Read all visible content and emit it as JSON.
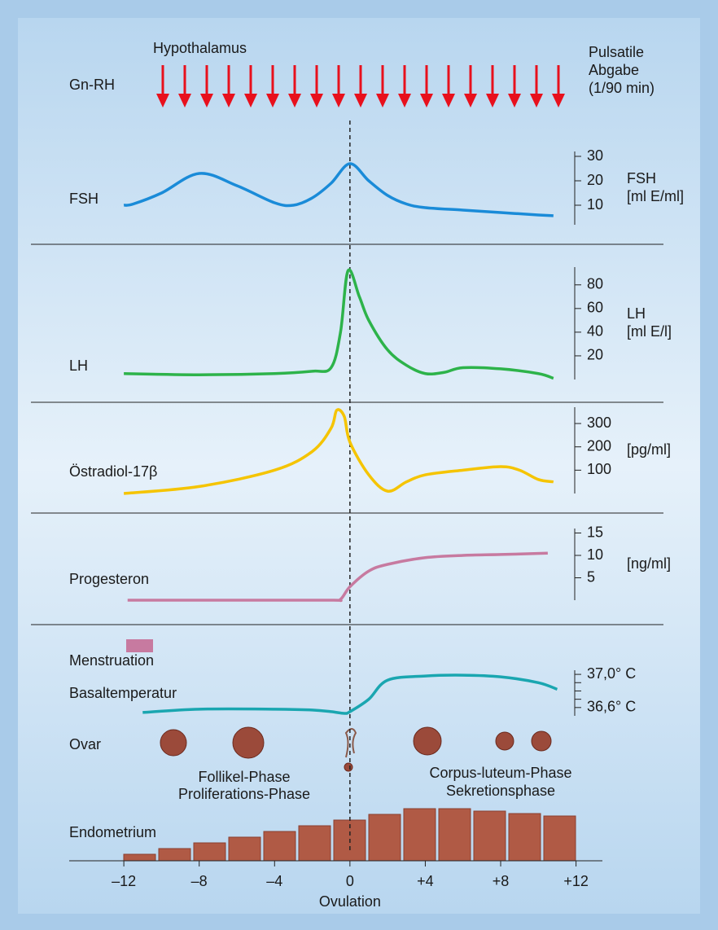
{
  "labels": {
    "hypothalamus": "Hypothalamus",
    "gnrh": "Gn-RH",
    "pulsatile": [
      "Pulsatile",
      "Abgabe",
      "(1/90 min)"
    ],
    "menstruation": "Menstruation",
    "ovar": "Ovar",
    "follicular": [
      "Follikel-Phase",
      "Proliferations-Phase"
    ],
    "luteal": [
      "Corpus-luteum-Phase",
      "Sekretionsphase"
    ],
    "endometrium": "Endometrium"
  },
  "x_axis": {
    "xlim": [
      -14.9,
      13.4
    ],
    "xlabel": "Ovulation",
    "xticks": [
      {
        "value": -12,
        "label": "–12"
      },
      {
        "value": -8,
        "label": "–8"
      },
      {
        "value": -4,
        "label": "–4"
      },
      0,
      {
        "value": 4,
        "label": "+4"
      },
      {
        "value": 8,
        "label": "+8"
      },
      {
        "value": 12,
        "label": "+12"
      }
    ]
  },
  "chart_data": [
    {
      "type": "line",
      "name": "FSH",
      "color": "#1a8bd8",
      "x": [
        -12,
        -11.5,
        -10,
        -8,
        -6,
        -4,
        -3,
        -2,
        -1,
        0,
        1,
        2,
        3,
        4,
        6,
        8,
        10,
        10.8
      ],
      "values": [
        10,
        10.5,
        15,
        23,
        18,
        11,
        10,
        13,
        19,
        27,
        20,
        14,
        10.5,
        9,
        8,
        7,
        6,
        5.7
      ],
      "ylim": [
        2,
        32
      ],
      "yticks": [
        30,
        20,
        10
      ],
      "unit_label": [
        "FSH",
        "[ml E/ml]"
      ]
    },
    {
      "type": "line",
      "name": "LH",
      "color": "#2db34a",
      "x": [
        -12,
        -8,
        -4,
        -2,
        -1,
        -0.5,
        -0.1,
        0.5,
        1,
        2,
        3,
        4,
        5,
        6,
        8,
        10,
        10.8
      ],
      "values": [
        5,
        4,
        5,
        7,
        10,
        40,
        92,
        70,
        50,
        25,
        12,
        5,
        6,
        10,
        9,
        5,
        1
      ],
      "ylim": [
        0,
        95
      ],
      "yticks": [
        80,
        60,
        40,
        20
      ],
      "unit_label": [
        "LH",
        "[ml E/l]"
      ]
    },
    {
      "type": "line",
      "name": "Östradiol-17β",
      "color": "#f5c400",
      "x": [
        -12,
        -8,
        -4,
        -2,
        -1,
        -0.7,
        -0.3,
        0,
        1,
        2,
        3,
        4,
        6,
        8,
        9,
        10,
        10.8
      ],
      "values": [
        0,
        30,
        100,
        180,
        280,
        357,
        330,
        220,
        80,
        10,
        50,
        80,
        100,
        115,
        100,
        60,
        50
      ],
      "ylim": [
        0,
        370
      ],
      "yticks": [
        300,
        200,
        100
      ],
      "unit_label": [
        "[pg/ml]"
      ]
    },
    {
      "type": "line",
      "name": "Progesteron",
      "color": "#c77aa0",
      "x": [
        -11.8,
        -6,
        -1,
        -0.5,
        0,
        1,
        2,
        4,
        6,
        8,
        10.5
      ],
      "values": [
        0,
        0,
        0,
        0.2,
        3,
        6.5,
        8,
        9.5,
        10,
        10.2,
        10.5
      ],
      "ylim": [
        0,
        16
      ],
      "yticks": [
        15,
        10,
        5
      ],
      "unit_label": [
        "[ng/ml]"
      ]
    },
    {
      "type": "line",
      "name": "Basaltemperatur",
      "color": "#1aa6b0",
      "x": [
        -11,
        -8,
        -4,
        -2,
        -1,
        -0.3,
        0,
        1,
        2,
        4,
        6,
        8,
        10,
        11
      ],
      "values": [
        36.54,
        36.58,
        36.58,
        36.57,
        36.55,
        36.53,
        36.55,
        36.7,
        36.93,
        36.98,
        36.99,
        36.97,
        36.9,
        36.82
      ],
      "ylim": [
        36.5,
        37.05
      ],
      "yticks": [
        {
          "value": 37.0,
          "label": "37,0° C"
        },
        {
          "value": 36.6,
          "label": "36,6° C"
        }
      ],
      "yminor": [
        36.7,
        36.8,
        36.9
      ]
    }
  ]
}
